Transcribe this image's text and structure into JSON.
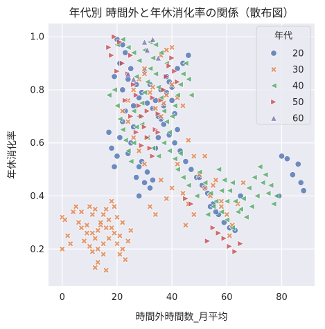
{
  "chart_data": {
    "type": "scatter",
    "title": "年代別 時間外と年休消化率の関係（散布図）",
    "xlabel": "時間外時間数_月平均",
    "ylabel": "年休消化率",
    "xlim": [
      -5,
      92
    ],
    "ylim": [
      0.06,
      1.05
    ],
    "xticks": [
      0,
      20,
      40,
      60,
      80
    ],
    "yticks": [
      0.2,
      0.4,
      0.6,
      0.8,
      1.0
    ],
    "xtick_labels": [
      "0",
      "20",
      "40",
      "60",
      "80"
    ],
    "ytick_labels": [
      "0.2",
      "0.4",
      "0.6",
      "0.8",
      "1.0"
    ],
    "grid": true,
    "legend": {
      "title": "年代",
      "placement": "top-right"
    },
    "series": [
      {
        "name": "20",
        "marker": "circle",
        "color": "#4c72b0",
        "points": [
          [
            17,
            0.64
          ],
          [
            18,
            0.58
          ],
          [
            19,
            0.51
          ],
          [
            20,
            0.55
          ],
          [
            21,
            0.62
          ],
          [
            22,
            0.68
          ],
          [
            23,
            0.72
          ],
          [
            24,
            0.56
          ],
          [
            25,
            0.6
          ],
          [
            26,
            0.66
          ],
          [
            27,
            0.47
          ],
          [
            28,
            0.51
          ],
          [
            29,
            0.53
          ],
          [
            30,
            0.45
          ],
          [
            31,
            0.49
          ],
          [
            33,
            0.46
          ],
          [
            34,
            0.58
          ],
          [
            35,
            0.62
          ],
          [
            36,
            0.69
          ],
          [
            37,
            0.74
          ],
          [
            38,
            0.79
          ],
          [
            39,
            0.83
          ],
          [
            40,
            0.76
          ],
          [
            41,
            0.71
          ],
          [
            42,
            0.65
          ],
          [
            19,
            0.85
          ],
          [
            21,
            0.9
          ],
          [
            23,
            0.94
          ],
          [
            25,
            0.88
          ],
          [
            27,
            0.82
          ],
          [
            29,
            0.79
          ],
          [
            31,
            0.75
          ],
          [
            33,
            0.73
          ],
          [
            35,
            0.7
          ],
          [
            37,
            0.67
          ],
          [
            39,
            0.63
          ],
          [
            41,
            0.6
          ],
          [
            43,
            0.57
          ],
          [
            45,
            0.53
          ],
          [
            47,
            0.5
          ],
          [
            49,
            0.47
          ],
          [
            51,
            0.44
          ],
          [
            53,
            0.41
          ],
          [
            55,
            0.37
          ],
          [
            57,
            0.33
          ],
          [
            59,
            0.3
          ],
          [
            61,
            0.28
          ],
          [
            63,
            0.27
          ],
          [
            65,
            0.4
          ],
          [
            80,
            0.55
          ],
          [
            82,
            0.54
          ],
          [
            84,
            0.48
          ],
          [
            86,
            0.52
          ],
          [
            87,
            0.45
          ],
          [
            88,
            0.42
          ],
          [
            79,
            0.4
          ],
          [
            32,
            0.43
          ],
          [
            28,
            0.4
          ],
          [
            50,
            0.47
          ],
          [
            52,
            0.43
          ],
          [
            54,
            0.36
          ],
          [
            56,
            0.34
          ],
          [
            22,
            0.8
          ],
          [
            24,
            0.84
          ],
          [
            26,
            0.74
          ],
          [
            28,
            0.77
          ],
          [
            30,
            0.87
          ],
          [
            32,
            0.82
          ],
          [
            34,
            0.76
          ],
          [
            36,
            0.8
          ],
          [
            38,
            0.85
          ],
          [
            40,
            0.81
          ],
          [
            42,
            0.88
          ],
          [
            44,
            0.9
          ],
          [
            46,
            0.93
          ],
          [
            22,
            0.97
          ],
          [
            20,
            0.99
          ]
        ]
      },
      {
        "name": "30",
        "marker": "x",
        "color": "#dd8452",
        "points": [
          [
            0,
            0.2
          ],
          [
            0,
            0.32
          ],
          [
            1,
            0.31
          ],
          [
            2,
            0.25
          ],
          [
            3,
            0.22
          ],
          [
            4,
            0.34
          ],
          [
            5,
            0.36
          ],
          [
            6,
            0.3
          ],
          [
            7,
            0.28
          ],
          [
            8,
            0.23
          ],
          [
            9,
            0.26
          ],
          [
            10,
            0.21
          ],
          [
            11,
            0.19
          ],
          [
            12,
            0.24
          ],
          [
            13,
            0.27
          ],
          [
            14,
            0.29
          ],
          [
            15,
            0.33
          ],
          [
            16,
            0.35
          ],
          [
            17,
            0.31
          ],
          [
            18,
            0.28
          ],
          [
            19,
            0.26
          ],
          [
            20,
            0.22
          ],
          [
            21,
            0.18
          ],
          [
            22,
            0.2
          ],
          [
            23,
            0.16
          ],
          [
            12,
            0.13
          ],
          [
            13,
            0.15
          ],
          [
            15,
            0.18
          ],
          [
            16,
            0.12
          ],
          [
            18,
            0.38
          ],
          [
            19,
            0.36
          ],
          [
            14,
            0.3
          ],
          [
            11,
            0.33
          ],
          [
            9,
            0.29
          ],
          [
            7,
            0.34
          ],
          [
            10,
            0.36
          ],
          [
            12,
            0.35
          ],
          [
            21,
            0.25
          ],
          [
            24,
            0.23
          ],
          [
            25,
            0.27
          ],
          [
            22,
            0.3
          ],
          [
            20,
            0.32
          ],
          [
            17,
            0.24
          ],
          [
            15,
            0.22
          ],
          [
            13,
            0.2
          ],
          [
            11,
            0.26
          ],
          [
            16,
            0.28
          ],
          [
            22,
            0.72
          ],
          [
            24,
            0.76
          ],
          [
            26,
            0.8
          ],
          [
            28,
            0.84
          ],
          [
            30,
            0.86
          ],
          [
            32,
            0.79
          ],
          [
            34,
            0.73
          ],
          [
            36,
            0.7
          ],
          [
            38,
            0.78
          ],
          [
            40,
            0.82
          ],
          [
            42,
            0.77
          ],
          [
            44,
            0.74
          ],
          [
            46,
            0.61
          ],
          [
            48,
            0.55
          ],
          [
            50,
            0.48
          ],
          [
            52,
            0.43
          ],
          [
            54,
            0.4
          ],
          [
            56,
            0.46
          ],
          [
            58,
            0.38
          ],
          [
            60,
            0.33
          ],
          [
            62,
            0.29
          ],
          [
            64,
            0.37
          ],
          [
            66,
            0.45
          ],
          [
            42,
            0.52
          ],
          [
            44,
            0.41
          ],
          [
            46,
            0.37
          ],
          [
            48,
            0.33
          ],
          [
            45,
            0.29
          ],
          [
            40,
            0.43
          ],
          [
            38,
            0.39
          ],
          [
            36,
            0.46
          ],
          [
            34,
            0.33
          ],
          [
            32,
            0.36
          ],
          [
            30,
            0.52
          ],
          [
            28,
            0.57
          ],
          [
            26,
            0.62
          ],
          [
            24,
            0.68
          ],
          [
            36,
            0.93
          ],
          [
            38,
            0.95
          ],
          [
            40,
            0.96
          ],
          [
            30,
            0.88
          ],
          [
            33,
            0.81
          ],
          [
            37,
            0.75
          ],
          [
            52,
            0.55
          ],
          [
            55,
            0.44
          ],
          [
            58,
            0.36
          ],
          [
            61,
            0.25
          ]
        ]
      },
      {
        "name": "40",
        "marker": "triangle-left",
        "color": "#55a868",
        "points": [
          [
            17,
            0.78
          ],
          [
            19,
            0.8
          ],
          [
            20,
            0.74
          ],
          [
            21,
            0.69
          ],
          [
            22,
            0.65
          ],
          [
            23,
            0.61
          ],
          [
            24,
            0.57
          ],
          [
            25,
            0.53
          ],
          [
            26,
            0.6
          ],
          [
            27,
            0.66
          ],
          [
            28,
            0.7
          ],
          [
            29,
            0.75
          ],
          [
            30,
            0.79
          ],
          [
            31,
            0.83
          ],
          [
            32,
            0.88
          ],
          [
            33,
            0.92
          ],
          [
            34,
            0.86
          ],
          [
            35,
            0.81
          ],
          [
            36,
            0.77
          ],
          [
            37,
            0.72
          ],
          [
            38,
            0.68
          ],
          [
            39,
            0.64
          ],
          [
            40,
            0.7
          ],
          [
            41,
            0.74
          ],
          [
            42,
            0.78
          ],
          [
            43,
            0.82
          ],
          [
            44,
            0.86
          ],
          [
            45,
            0.9
          ],
          [
            46,
            0.84
          ],
          [
            47,
            0.78
          ],
          [
            20,
            0.97
          ],
          [
            22,
            0.99
          ],
          [
            24,
            0.96
          ],
          [
            26,
            0.94
          ],
          [
            28,
            0.91
          ],
          [
            30,
            0.95
          ],
          [
            32,
            0.98
          ],
          [
            34,
            0.97
          ],
          [
            36,
            0.94
          ],
          [
            38,
            0.9
          ],
          [
            50,
            0.49
          ],
          [
            52,
            0.45
          ],
          [
            54,
            0.41
          ],
          [
            56,
            0.38
          ],
          [
            58,
            0.34
          ],
          [
            60,
            0.31
          ],
          [
            62,
            0.28
          ],
          [
            64,
            0.34
          ],
          [
            66,
            0.39
          ],
          [
            68,
            0.43
          ],
          [
            70,
            0.47
          ],
          [
            72,
            0.51
          ],
          [
            74,
            0.48
          ],
          [
            76,
            0.44
          ],
          [
            78,
            0.4
          ],
          [
            57,
            0.5
          ],
          [
            59,
            0.46
          ],
          [
            61,
            0.42
          ],
          [
            63,
            0.38
          ],
          [
            65,
            0.35
          ],
          [
            67,
            0.32
          ],
          [
            69,
            0.36
          ],
          [
            71,
            0.4
          ],
          [
            73,
            0.45
          ],
          [
            75,
            0.41
          ],
          [
            77,
            0.37
          ],
          [
            60,
            0.38
          ],
          [
            62,
            0.45
          ],
          [
            58,
            0.42
          ],
          [
            55,
            0.36
          ],
          [
            53,
            0.33
          ],
          [
            49,
            0.4
          ],
          [
            46,
            0.44
          ],
          [
            44,
            0.47
          ],
          [
            42,
            0.5
          ],
          [
            26,
            0.72
          ],
          [
            29,
            0.67
          ],
          [
            31,
            0.62
          ],
          [
            33,
            0.58
          ],
          [
            35,
            0.55
          ],
          [
            37,
            0.6
          ],
          [
            39,
            0.57
          ],
          [
            41,
            0.54
          ],
          [
            43,
            0.56
          ],
          [
            27,
            0.85
          ]
        ]
      },
      {
        "name": "50",
        "marker": "triangle-right",
        "color": "#c44e52",
        "points": [
          [
            17,
            0.96
          ],
          [
            18,
            0.93
          ],
          [
            19,
            1.0
          ],
          [
            21,
            0.98
          ],
          [
            22,
            0.9
          ],
          [
            24,
            0.86
          ],
          [
            25,
            0.93
          ],
          [
            26,
            0.82
          ],
          [
            27,
            0.78
          ],
          [
            28,
            0.74
          ],
          [
            29,
            0.7
          ],
          [
            30,
            0.66
          ],
          [
            31,
            0.62
          ],
          [
            32,
            0.58
          ],
          [
            33,
            0.55
          ],
          [
            34,
            0.65
          ],
          [
            35,
            0.71
          ],
          [
            36,
            0.76
          ],
          [
            37,
            0.8
          ],
          [
            38,
            0.85
          ],
          [
            39,
            0.89
          ],
          [
            40,
            0.92
          ],
          [
            41,
            0.87
          ],
          [
            42,
            0.83
          ],
          [
            23,
            0.76
          ],
          [
            25,
            0.7
          ],
          [
            27,
            0.64
          ],
          [
            29,
            0.59
          ],
          [
            20,
            0.87
          ],
          [
            53,
            0.23
          ],
          [
            55,
            0.28
          ],
          [
            57,
            0.26
          ],
          [
            59,
            0.24
          ],
          [
            61,
            0.21
          ],
          [
            63,
            0.19
          ],
          [
            65,
            0.22
          ],
          [
            45,
            0.39
          ],
          [
            47,
            0.37
          ],
          [
            35,
            0.64
          ],
          [
            31,
            0.72
          ],
          [
            33,
            0.77
          ]
        ]
      },
      {
        "name": "60",
        "marker": "triangle-up",
        "color": "#8172b3",
        "points": [
          [
            30,
            0.98
          ],
          [
            31,
            0.95
          ],
          [
            33,
            0.99
          ],
          [
            24,
            0.86
          ],
          [
            26,
            0.84
          ],
          [
            35,
            0.92
          ]
        ]
      }
    ]
  }
}
